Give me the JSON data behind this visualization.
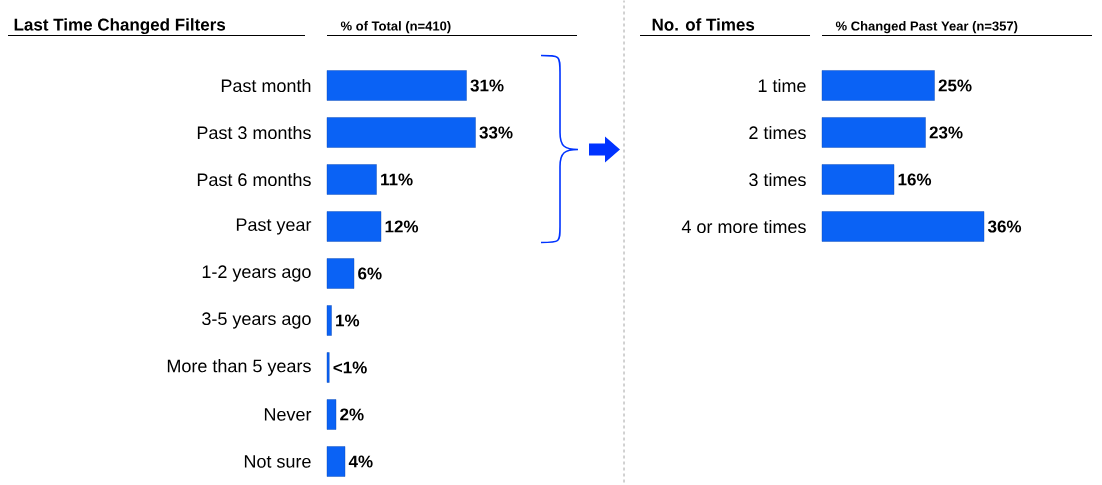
{
  "chart_data": [
    {
      "type": "bar",
      "orientation": "horizontal",
      "title": "Last Time Changed Filters",
      "xlabel": "% of Total (n=410)",
      "categories": [
        "Past month",
        "Past 3 months",
        "Past 6 months",
        "Past year",
        "1-2 years ago",
        "3-5 years ago",
        "More than 5 years",
        "Never",
        "Not sure"
      ],
      "values": [
        31,
        33,
        11,
        12,
        6,
        1,
        0.5,
        2,
        4
      ],
      "value_labels": [
        "31%",
        "33%",
        "11%",
        "12%",
        "6%",
        "1%",
        "<1%",
        "2%",
        "4%"
      ],
      "color": "#0a62f5"
    },
    {
      "type": "bar",
      "orientation": "horizontal",
      "title": "No. of Times",
      "xlabel": "% Changed Past Year (n=357)",
      "categories": [
        "1 time",
        "2 times",
        "3 times",
        "4 or more times"
      ],
      "values": [
        25,
        23,
        16,
        36
      ],
      "value_labels": [
        "25%",
        "23%",
        "16%",
        "36%"
      ],
      "color": "#0a62f5"
    }
  ]
}
